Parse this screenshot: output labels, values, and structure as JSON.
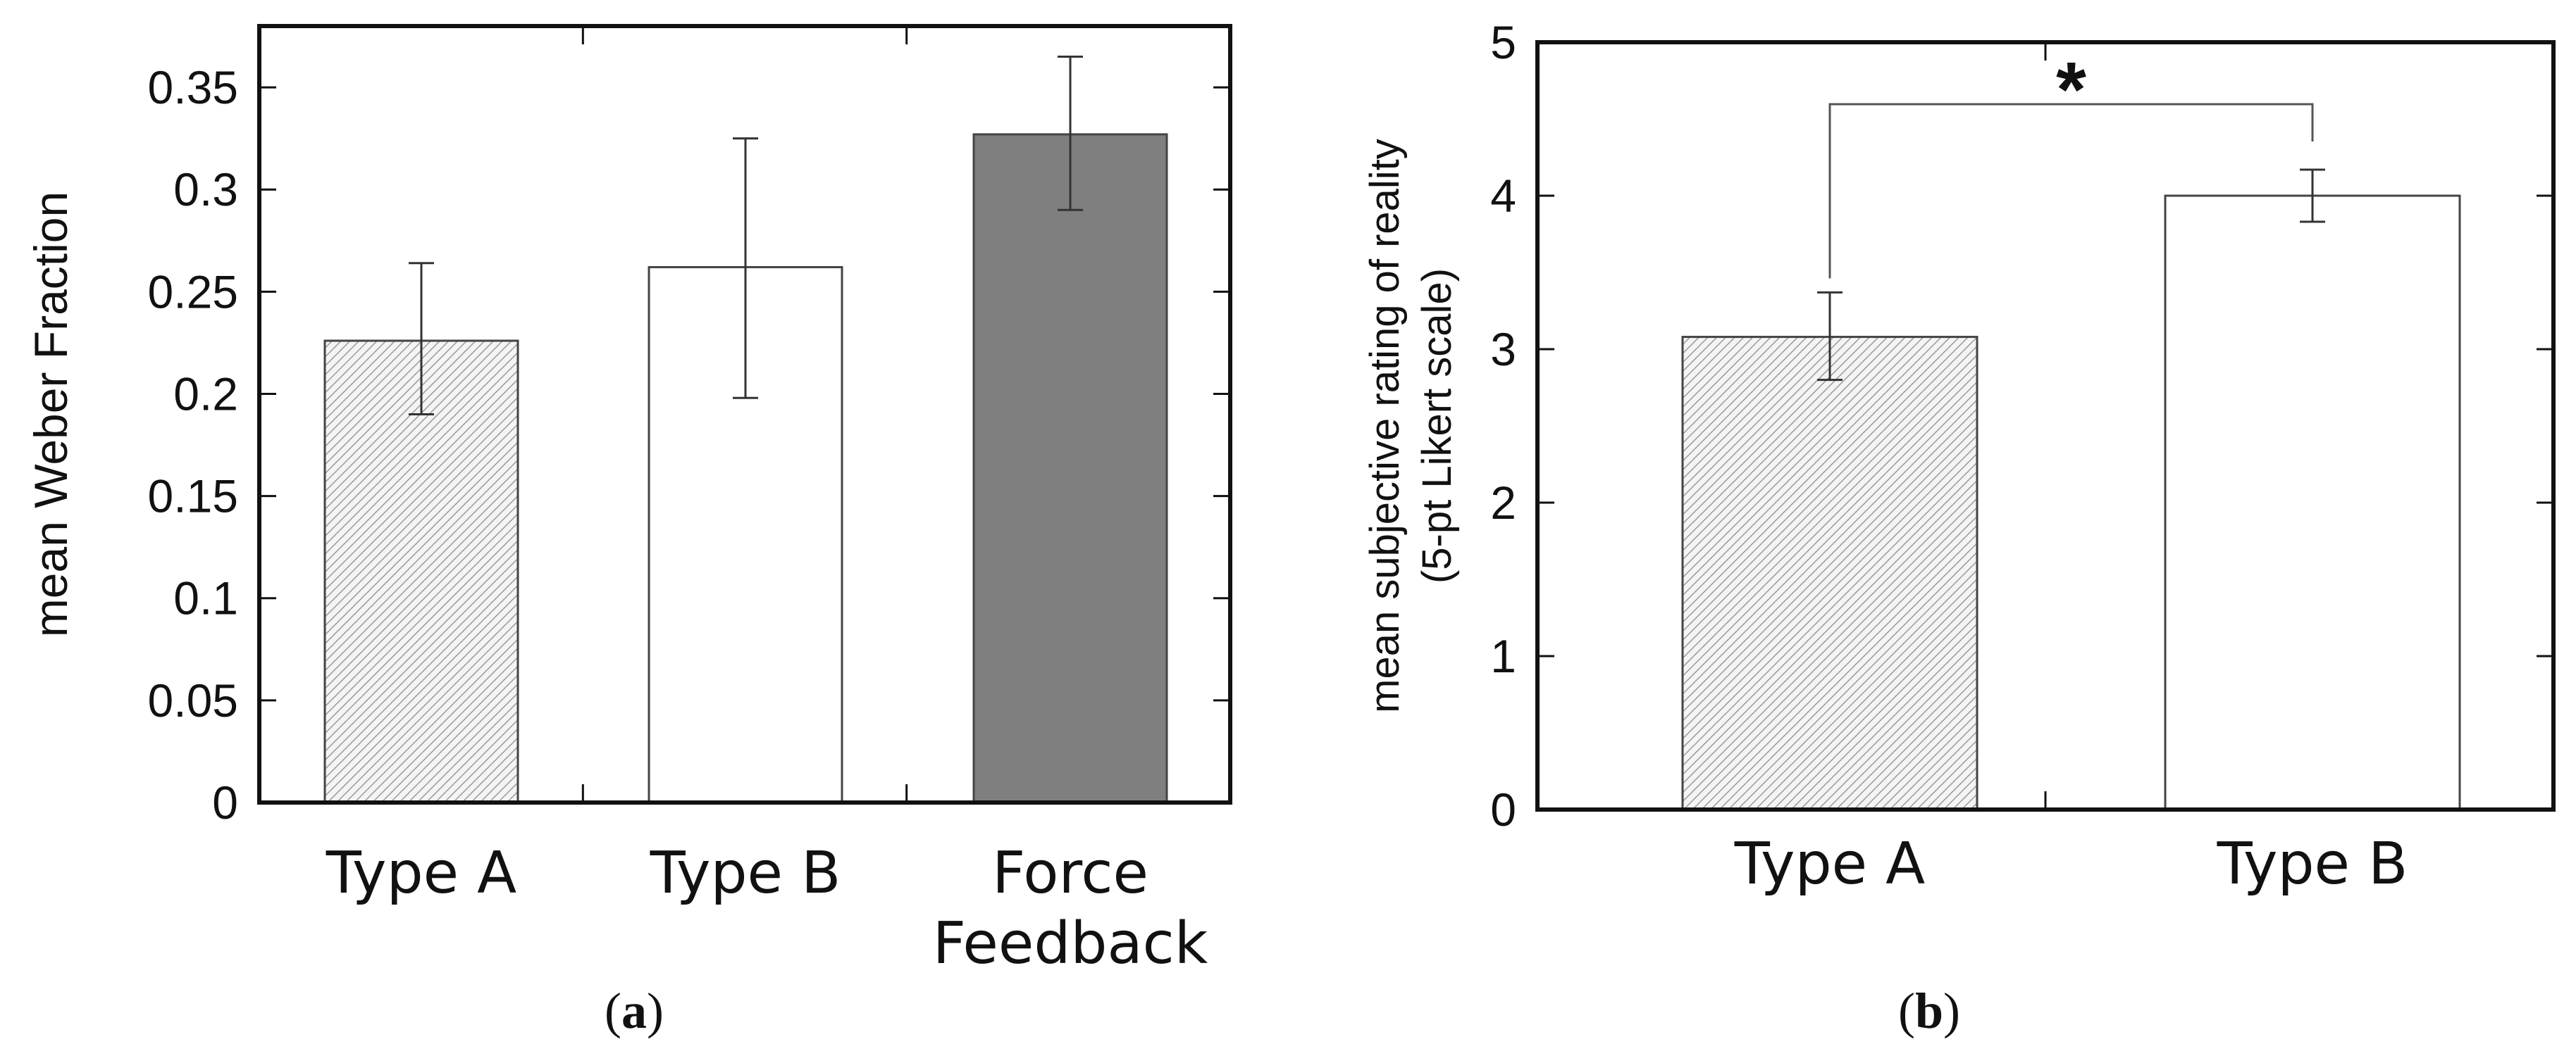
{
  "chart_data": [
    {
      "type": "bar",
      "panel_label": "a",
      "ylabel": "mean Weber Fraction",
      "xlabel": "",
      "ylim": [
        0,
        0.38
      ],
      "yticks": [
        0,
        0.05,
        0.1,
        0.15,
        0.2,
        0.25,
        0.3,
        0.35
      ],
      "ytick_labels": [
        "0",
        "0.05",
        "0.1",
        "0.15",
        "0.2",
        "0.25",
        "0.3",
        "0.35"
      ],
      "categories": [
        {
          "label_lines": [
            "Type A"
          ],
          "value": 0.226,
          "err_low": 0.19,
          "err_high": 0.264,
          "fill": "hatch"
        },
        {
          "label_lines": [
            "Type B"
          ],
          "value": 0.262,
          "err_low": 0.198,
          "err_high": 0.325,
          "fill": "white"
        },
        {
          "label_lines": [
            "Force",
            "Feedback"
          ],
          "value": 0.327,
          "err_low": 0.29,
          "err_high": 0.365,
          "fill": "gray"
        }
      ],
      "colors": {
        "gray_bar": "#7f7f7f",
        "hatch_stroke": "#9a9a9a",
        "axis": "#111111"
      }
    },
    {
      "type": "bar",
      "panel_label": "b",
      "ylabel_lines": [
        "mean subjective rating of reality",
        "(5-pt Likert scale)"
      ],
      "xlabel": "",
      "ylim": [
        0,
        5
      ],
      "yticks": [
        0,
        1,
        2,
        3,
        4,
        5
      ],
      "ytick_labels": [
        "0",
        "1",
        "2",
        "3",
        "4",
        "5"
      ],
      "categories": [
        {
          "label_lines": [
            "Type A"
          ],
          "value": 3.08,
          "err_low": 2.8,
          "err_high": 3.37,
          "fill": "hatch"
        },
        {
          "label_lines": [
            "Type B"
          ],
          "value": 4.0,
          "err_low": 3.83,
          "err_high": 4.17,
          "fill": "white"
        }
      ],
      "significance": {
        "from": 0,
        "to": 1,
        "label": "*"
      },
      "colors": {
        "hatch_stroke": "#9a9a9a",
        "axis": "#111111"
      }
    }
  ]
}
